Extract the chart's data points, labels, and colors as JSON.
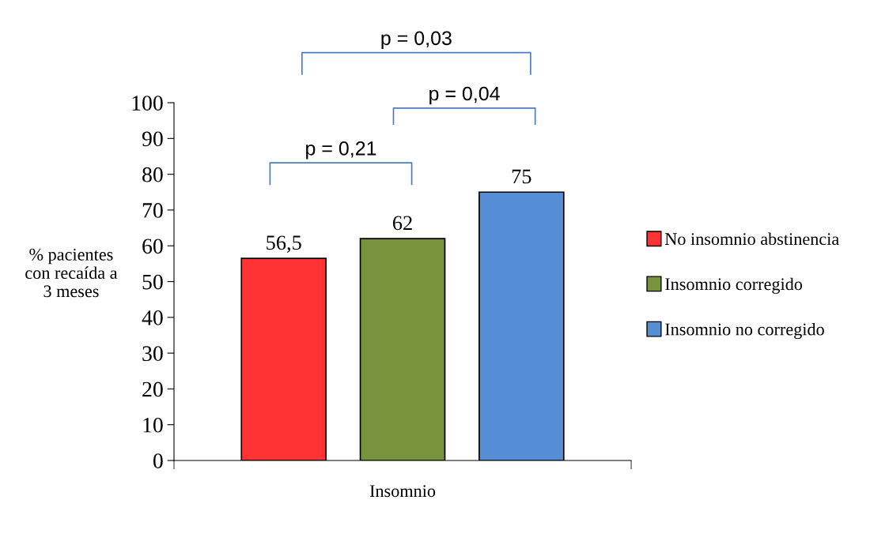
{
  "chart_data": {
    "type": "bar",
    "ylabel": "% pacientes\ncon recaída a\n3 meses",
    "categories": [
      "Insomnio"
    ],
    "series": [
      {
        "name": "No insomnio abstinencia",
        "color": "#ff3333",
        "values": [
          56.5
        ],
        "value_labels": [
          "56,5"
        ]
      },
      {
        "name": "Insomnio corregido",
        "color": "#77933c",
        "values": [
          62
        ],
        "value_labels": [
          "62"
        ]
      },
      {
        "name": "Insomnio no corregido",
        "color": "#558ed5",
        "values": [
          75
        ],
        "value_labels": [
          "75"
        ]
      }
    ],
    "ylim": [
      0,
      100
    ],
    "yticks": [
      0,
      10,
      20,
      30,
      40,
      50,
      60,
      70,
      80,
      90,
      100
    ],
    "annotations": [
      "p = 0,21",
      "p = 0,04",
      "p = 0,03"
    ],
    "grid": false,
    "legend": "right"
  }
}
